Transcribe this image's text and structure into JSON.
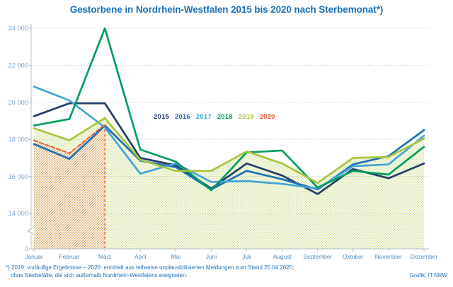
{
  "page": {
    "title": "Gestorbene in Nordrhein-Westfalen 2015 bis 2020 nach Sterbemonat*)",
    "footnote": {
      "marker": "*)",
      "line1": "2019: vorläufige Ergebnisse – 2020: ermittelt aus teilweise unplausibilisierten Meldungen zum Stand 20.04.2020;",
      "line2": "ohne Sterbefälle, die sich außerhalb Nordrhein-Westfalens ereigneten.",
      "credit": "Grafik: IT.NRW"
    }
  },
  "chart_data": {
    "type": "line",
    "title": "Gestorbene in Nordrhein-Westfalen 2015 bis 2020 nach Sterbemonat*)",
    "x_categories": [
      "Januar",
      "Februar",
      "März",
      "April",
      "Mai",
      "Juni",
      "Juli",
      "August",
      "September",
      "Oktober",
      "November",
      "Dezember"
    ],
    "y_ticks": [
      24000,
      22000,
      20000,
      18000,
      16000,
      14000,
      0
    ],
    "y_tick_labels": [
      "24 000",
      "22 000",
      "20 000",
      "18 000",
      "16 000",
      "14 000",
      "0"
    ],
    "y_axis_break": true,
    "ylim_value_area": [
      14000,
      24000
    ],
    "grid": "dotted-horizontal",
    "legend_position": "inside-top-center",
    "series": [
      {
        "name": "2015",
        "color": "#253e6a",
        "style": "solid",
        "area_hatch": false,
        "values": [
          19250,
          19950,
          19950,
          17000,
          16600,
          15350,
          16700,
          16050,
          15050,
          16400,
          15900,
          16700
        ]
      },
      {
        "name": "2016",
        "color": "#1d70b7",
        "style": "solid",
        "area_hatch": false,
        "values": [
          17750,
          16950,
          18750,
          16850,
          16500,
          15300,
          16300,
          15850,
          15300,
          16650,
          17100,
          18500
        ]
      },
      {
        "name": "2017",
        "color": "#41a5d8",
        "style": "solid",
        "area_hatch": false,
        "values": [
          20850,
          20100,
          18650,
          16150,
          16700,
          15700,
          15750,
          15600,
          15350,
          16550,
          16650,
          18200
        ]
      },
      {
        "name": "2018",
        "color": "#009e5f",
        "style": "solid",
        "area_hatch": false,
        "values": [
          18750,
          19100,
          24000,
          17450,
          16800,
          15250,
          17300,
          17400,
          15400,
          16300,
          16100,
          17600
        ]
      },
      {
        "name": "2019",
        "color": "#a8c63c",
        "style": "solid",
        "area_hatch": true,
        "values": [
          18600,
          17950,
          19150,
          16900,
          16300,
          16300,
          17350,
          16700,
          15650,
          17000,
          17050,
          18050
        ]
      },
      {
        "name": "2020",
        "color": "#e8552d",
        "style": "dashed",
        "area_hatch": true,
        "drop_line_at_last_point": true,
        "values": [
          17950,
          17250,
          18800,
          null,
          null,
          null,
          null,
          null,
          null,
          null,
          null,
          null
        ]
      }
    ],
    "colors": {
      "title": "#1d70b7",
      "axis": "#b6bfc7",
      "grid": "#c6cfd6",
      "y_labels": "#7aa9d2",
      "x_labels": "#4a8fc7",
      "hatch_green": "rgba(168,198,60,0.62)",
      "hatch_orange": "rgba(235,95,45,0.55)"
    }
  }
}
